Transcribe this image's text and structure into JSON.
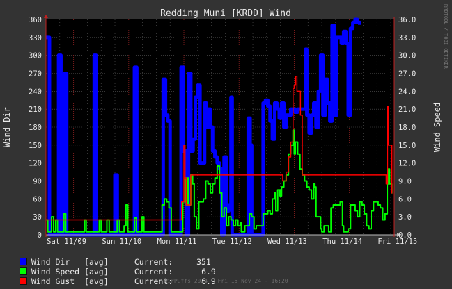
{
  "chart_data": {
    "type": "line",
    "title": "Redding Muni [KRDD] Wind",
    "left_axis_label": "Wind Dir",
    "right_axis_label": "Wind Speed",
    "left_ylim": [
      0,
      360
    ],
    "right_ylim": [
      0,
      36
    ],
    "left_ticks": [
      "0",
      "30",
      "60",
      "90",
      "120",
      "150",
      "180",
      "210",
      "240",
      "270",
      "300",
      "330",
      "360"
    ],
    "right_ticks": [
      "0.0",
      "3.0",
      "6.0",
      "9.0",
      "12.0",
      "15.0",
      "18.0",
      "21.0",
      "24.0",
      "27.0",
      "30.0",
      "33.0",
      "36.0"
    ],
    "x_ticks": [
      "Sat 11/09",
      "Sun 11/10",
      "Mon 11/11",
      "Tue 11/12",
      "Wed 11/13",
      "Thu 11/14",
      "Fri 11/15"
    ],
    "grid": true,
    "colors": {
      "dir": "#0000ff",
      "speed": "#00ff00",
      "gust": "#ff0000",
      "plot_bg": "#000000",
      "grid": "#5a5a5a",
      "axis_red": "#c02020"
    },
    "x_unit": "hours since Sat 11/09 00:00",
    "series": [
      {
        "name": "Wind Dir",
        "points": [
          [
            0,
            330
          ],
          [
            1.5,
            0
          ],
          [
            3,
            0
          ],
          [
            4.2,
            0
          ],
          [
            5.5,
            300
          ],
          [
            6.5,
            0
          ],
          [
            8,
            270
          ],
          [
            9,
            0
          ],
          [
            10,
            0
          ],
          [
            11.5,
            0
          ],
          [
            13,
            0
          ],
          [
            14.5,
            0
          ],
          [
            16,
            0
          ],
          [
            17.4,
            0
          ],
          [
            18.2,
            0
          ],
          [
            19,
            0
          ],
          [
            20,
            0
          ],
          [
            21,
            300
          ],
          [
            21.8,
            0
          ],
          [
            23,
            0
          ],
          [
            24.5,
            0
          ],
          [
            25.5,
            0
          ],
          [
            26.5,
            0
          ],
          [
            27.5,
            0
          ],
          [
            28.5,
            0
          ],
          [
            29,
            0
          ],
          [
            30,
            100
          ],
          [
            31,
            0
          ],
          [
            32,
            0
          ],
          [
            33.5,
            0
          ],
          [
            35,
            0
          ],
          [
            36,
            0
          ],
          [
            37.5,
            0
          ],
          [
            38.5,
            280
          ],
          [
            39.5,
            0
          ],
          [
            40.5,
            0
          ],
          [
            42,
            0
          ],
          [
            43,
            0
          ],
          [
            45,
            0
          ],
          [
            46,
            0
          ],
          [
            47,
            0
          ],
          [
            48,
            0
          ],
          [
            49,
            0
          ],
          [
            50,
            0
          ],
          [
            51,
            260
          ],
          [
            52,
            200
          ],
          [
            53,
            190
          ],
          [
            54,
            0
          ],
          [
            55,
            0
          ],
          [
            56,
            0
          ],
          [
            57,
            0
          ],
          [
            58,
            0
          ],
          [
            58.8,
            280
          ],
          [
            59.8,
            140
          ],
          [
            61,
            0
          ],
          [
            62,
            270
          ],
          [
            63,
            140
          ],
          [
            64,
            160
          ],
          [
            65,
            230
          ],
          [
            66,
            250
          ],
          [
            67,
            120
          ],
          [
            68,
            120
          ],
          [
            69,
            220
          ],
          [
            69.8,
            180
          ],
          [
            70.5,
            210
          ],
          [
            71.5,
            180
          ],
          [
            72.5,
            140
          ],
          [
            73.5,
            130
          ],
          [
            74.5,
            120
          ],
          [
            75.5,
            110
          ],
          [
            76.5,
            0
          ],
          [
            77.5,
            130
          ],
          [
            78.5,
            40
          ],
          [
            79.5,
            50
          ],
          [
            80.5,
            230
          ],
          [
            81,
            0
          ],
          [
            81.5,
            0
          ],
          [
            82.5,
            0
          ],
          [
            83.5,
            0
          ],
          [
            84.5,
            0
          ],
          [
            85.5,
            0
          ],
          [
            86.5,
            0
          ],
          [
            87.5,
            0
          ],
          [
            88,
            195
          ],
          [
            88.8,
            150
          ],
          [
            89.5,
            0
          ],
          [
            90.5,
            0
          ],
          [
            91.5,
            0
          ],
          [
            92.5,
            0
          ],
          [
            93.5,
            0
          ],
          [
            94.5,
            220
          ],
          [
            95.5,
            225
          ],
          [
            96.5,
            215
          ],
          [
            97.5,
            190
          ],
          [
            98.5,
            160
          ],
          [
            99.5,
            220
          ],
          [
            100.5,
            210
          ],
          [
            101.5,
            195
          ],
          [
            102.5,
            220
          ],
          [
            103.5,
            180
          ],
          [
            104.5,
            200
          ],
          [
            105.5,
            200
          ],
          [
            106.5,
            210
          ],
          [
            107.5,
            210
          ],
          [
            108.5,
            205
          ],
          [
            109.5,
            210
          ],
          [
            110.5,
            210
          ],
          [
            111.5,
            210
          ],
          [
            112.5,
            210
          ],
          [
            112.9,
            310
          ],
          [
            113.5,
            200
          ],
          [
            114.5,
            170
          ],
          [
            115.5,
            200
          ],
          [
            116.5,
            220
          ],
          [
            117.5,
            180
          ],
          [
            118.5,
            240
          ],
          [
            119.5,
            300
          ],
          [
            120.5,
            200
          ],
          [
            121.5,
            260
          ],
          [
            122.5,
            220
          ],
          [
            123.5,
            190
          ],
          [
            124.5,
            350
          ],
          [
            125.5,
            200
          ],
          [
            126.5,
            330
          ],
          [
            127.5,
            330
          ],
          [
            128.5,
            320
          ],
          [
            129.5,
            340
          ],
          [
            130.5,
            320
          ],
          [
            131.5,
            200
          ],
          [
            132.5,
            345
          ],
          [
            133.5,
            355
          ],
          [
            134.5,
            360
          ],
          [
            135.5,
            355
          ],
          [
            136.5,
            351
          ]
        ]
      },
      {
        "name": "Wind Speed",
        "points": [
          [
            0,
            2.5
          ],
          [
            0.8,
            0.5
          ],
          [
            1.5,
            0.5
          ],
          [
            2.4,
            3.0
          ],
          [
            3.3,
            0.5
          ],
          [
            4.2,
            2.5
          ],
          [
            5,
            0.5
          ],
          [
            6,
            0.5
          ],
          [
            7,
            0.5
          ],
          [
            7.8,
            3.5
          ],
          [
            8.6,
            0.5
          ],
          [
            9.5,
            0.5
          ],
          [
            11,
            0.5
          ],
          [
            13,
            0.5
          ],
          [
            15,
            0.5
          ],
          [
            16,
            0.5
          ],
          [
            16.8,
            2.5
          ],
          [
            17.5,
            0.5
          ],
          [
            19,
            0.5
          ],
          [
            21,
            0.5
          ],
          [
            22.5,
            0.5
          ],
          [
            23.2,
            2.5
          ],
          [
            24,
            0.5
          ],
          [
            25.5,
            0.5
          ],
          [
            26.5,
            2.5
          ],
          [
            27.5,
            0.5
          ],
          [
            28.5,
            0.5
          ],
          [
            30,
            0.5
          ],
          [
            31,
            2.5
          ],
          [
            32,
            0.5
          ],
          [
            33,
            0.5
          ],
          [
            34,
            1.5
          ],
          [
            34.8,
            5.0
          ],
          [
            35.6,
            0.5
          ],
          [
            36.5,
            0.5
          ],
          [
            37.5,
            0.5
          ],
          [
            38.5,
            2.8
          ],
          [
            39.3,
            0.5
          ],
          [
            40,
            0.5
          ],
          [
            41,
            0.5
          ],
          [
            41.8,
            3.0
          ],
          [
            42.6,
            0.5
          ],
          [
            44,
            0.5
          ],
          [
            45.5,
            0.5
          ],
          [
            47,
            0.5
          ],
          [
            48,
            0.5
          ],
          [
            49.5,
            0.5
          ],
          [
            50.5,
            5.0
          ],
          [
            51.5,
            6.0
          ],
          [
            52.5,
            5.5
          ],
          [
            53.5,
            4.5
          ],
          [
            54.5,
            0.5
          ],
          [
            55.5,
            0.5
          ],
          [
            56.5,
            0.5
          ],
          [
            57.5,
            0.5
          ],
          [
            58.5,
            0.5
          ],
          [
            59.5,
            5.5
          ],
          [
            60.5,
            9.5
          ],
          [
            61,
            5.0
          ],
          [
            61.5,
            9.5
          ],
          [
            62,
            5.0
          ],
          [
            63,
            10.0
          ],
          [
            63.8,
            8.5
          ],
          [
            64.5,
            3.0
          ],
          [
            65.5,
            1.0
          ],
          [
            66.5,
            5.5
          ],
          [
            67.5,
            5.5
          ],
          [
            68.5,
            6.0
          ],
          [
            69.5,
            9.0
          ],
          [
            70.5,
            8.5
          ],
          [
            71.5,
            7.0
          ],
          [
            72.5,
            8.5
          ],
          [
            73.5,
            9.5
          ],
          [
            74.5,
            11.5
          ],
          [
            75.5,
            7.0
          ],
          [
            76.5,
            3.0
          ],
          [
            77.5,
            4.5
          ],
          [
            78.5,
            1.5
          ],
          [
            79.5,
            3.0
          ],
          [
            80.5,
            2.5
          ],
          [
            81.5,
            1.5
          ],
          [
            82.5,
            2.5
          ],
          [
            83.5,
            1.5
          ],
          [
            84.5,
            2.0
          ],
          [
            85,
            0.5
          ],
          [
            86,
            0.5
          ],
          [
            86.5,
            1.5
          ],
          [
            87.5,
            1.5
          ],
          [
            88.5,
            3.5
          ],
          [
            89.5,
            3.0
          ],
          [
            90.5,
            1.0
          ],
          [
            91.5,
            1.5
          ],
          [
            92.5,
            1.5
          ],
          [
            93.5,
            1.5
          ],
          [
            94.5,
            3.5
          ],
          [
            95.5,
            3.5
          ],
          [
            96.5,
            4.0
          ],
          [
            97.5,
            3.5
          ],
          [
            98.5,
            6.0
          ],
          [
            99.5,
            7.0
          ],
          [
            100,
            4.0
          ],
          [
            100.8,
            7.5
          ],
          [
            101.8,
            6.5
          ],
          [
            102.5,
            8.0
          ],
          [
            103.5,
            9.0
          ],
          [
            104.5,
            10.0
          ],
          [
            105.5,
            13.5
          ],
          [
            106.5,
            15.0
          ],
          [
            107.5,
            17.5
          ],
          [
            108,
            13.5
          ],
          [
            108.5,
            15.5
          ],
          [
            109.5,
            13.5
          ],
          [
            110.5,
            11.0
          ],
          [
            111.5,
            10.0
          ],
          [
            112.5,
            9.0
          ],
          [
            113.5,
            8.0
          ],
          [
            114.5,
            7.5
          ],
          [
            115.5,
            6.0
          ],
          [
            116.5,
            8.5
          ],
          [
            117,
            8.0
          ],
          [
            117.5,
            3.0
          ],
          [
            118.5,
            3.0
          ],
          [
            119.5,
            1.0
          ],
          [
            120,
            0.5
          ],
          [
            121,
            1.5
          ],
          [
            122,
            1.5
          ],
          [
            123,
            0.5
          ],
          [
            124,
            4.5
          ],
          [
            125,
            5.0
          ],
          [
            126,
            5.0
          ],
          [
            127,
            5.0
          ],
          [
            128,
            5.5
          ],
          [
            129,
            1.5
          ],
          [
            129.5,
            0.5
          ],
          [
            130.5,
            0.5
          ],
          [
            131.5,
            1.0
          ],
          [
            132.5,
            5.0
          ],
          [
            133.5,
            5.0
          ],
          [
            134.5,
            4.0
          ],
          [
            135.5,
            3.0
          ],
          [
            136.5,
            5.5
          ],
          [
            137.5,
            5.0
          ],
          [
            138.5,
            3.5
          ],
          [
            139.5,
            1.5
          ],
          [
            140.5,
            1.0
          ],
          [
            141.5,
            4.0
          ],
          [
            142.5,
            5.5
          ],
          [
            143.5,
            5.5
          ],
          [
            144.5,
            5.0
          ],
          [
            145.5,
            4.5
          ],
          [
            146.5,
            2.5
          ],
          [
            147.5,
            3.5
          ],
          [
            148.5,
            8.5
          ],
          [
            149,
            11.0
          ],
          [
            149.5,
            8.5
          ],
          [
            150.5,
            6.9
          ]
        ]
      },
      {
        "name": "Wind Gust",
        "points": [
          [
            0,
            2.5
          ],
          [
            59,
            5.5
          ],
          [
            60,
            15.0
          ],
          [
            60.5,
            9.5
          ],
          [
            61,
            5.0
          ],
          [
            63,
            10.0
          ],
          [
            103,
            9.0
          ],
          [
            104.5,
            10.5
          ],
          [
            105.5,
            13.0
          ],
          [
            106.5,
            15.5
          ],
          [
            107.5,
            24.5
          ],
          [
            108,
            25.0
          ],
          [
            108.6,
            26.5
          ],
          [
            109.2,
            24.0
          ],
          [
            110,
            24.0
          ],
          [
            110.7,
            20.0
          ],
          [
            111.5,
            10.0
          ],
          [
            148,
            8.5
          ],
          [
            148.6,
            21.5
          ],
          [
            149,
            15.0
          ],
          [
            149.6,
            15.0
          ],
          [
            150.5,
            6.9
          ]
        ]
      }
    ],
    "legend": [
      {
        "label": "Wind Dir   [avg]",
        "current_label": "Current:",
        "current": "351"
      },
      {
        "label": "Wind Speed [avg]",
        "current_label": "Current:",
        "current": "6.9"
      },
      {
        "label": "Wind Gust  [avg]",
        "current_label": "Current:",
        "current": "6.9"
      }
    ],
    "footer": "AirPuffs 2024 - Fri 15 Nov 24 - 16:20",
    "watermark": "RRDTOOL / TOBI OETIKER"
  }
}
